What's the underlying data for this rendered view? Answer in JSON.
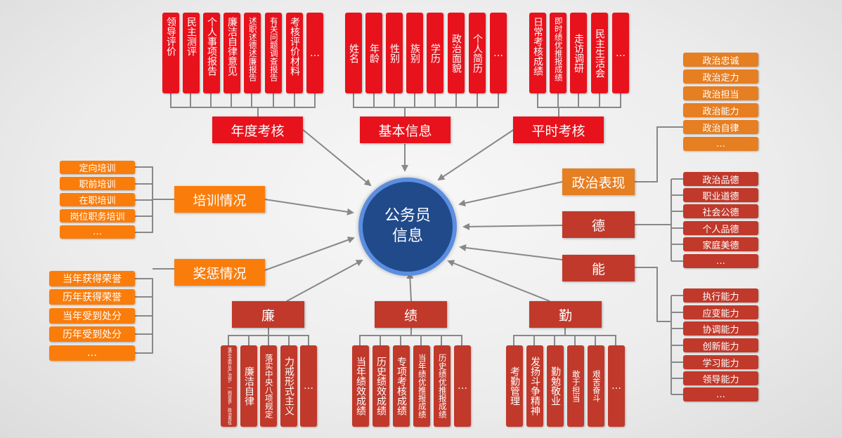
{
  "center": {
    "line1": "公务员",
    "line2": "信息"
  },
  "categories": {
    "annual": "年度考核",
    "basic": "基本信息",
    "routine": "平时考核",
    "training": "培训情况",
    "reward": "奖惩情况",
    "political": "政治表现",
    "de": "德",
    "neng": "能",
    "lian": "廉",
    "ji": "绩",
    "qin": "勤"
  },
  "annual_items": [
    "领导评价",
    "民主测评",
    "个人事项报告",
    "廉洁自律意见",
    "述职述德述廉报告",
    "有关问题调查报告",
    "考核评价材料",
    "…"
  ],
  "basic_items": [
    "姓名",
    "年龄",
    "性别",
    "族别",
    "学历",
    "政治面貌",
    "个人简历",
    "…"
  ],
  "routine_items": [
    "日常考核成绩",
    "即时绩优推报成绩",
    "走访调研",
    "民主生活会",
    "…"
  ],
  "training_items": [
    "定向培训",
    "职前培训",
    "在职培训",
    "岗位职务培训",
    "…"
  ],
  "reward_items": [
    "当年获得荣誉",
    "历年获得荣誉",
    "当年受到处分",
    "历年受到处分",
    "…"
  ],
  "political_items": [
    "政治忠诚",
    "政治定力",
    "政治担当",
    "政治能力",
    "政治自律",
    "…"
  ],
  "de_items": [
    "政治品德",
    "职业道德",
    "社会公德",
    "个人品德",
    "家庭美德",
    "…"
  ],
  "neng_items": [
    "执行能力",
    "应变能力",
    "协调能力",
    "创新能力",
    "学习能力",
    "领导能力",
    "…"
  ],
  "lian_items": [
    "落实全面从严治党“一岗双责”政治责任",
    "廉洁自律",
    "落实中央八项规定",
    "力戒形式主义",
    "…"
  ],
  "ji_items": [
    "当年绩效成绩",
    "历史绩效成绩",
    "专项考核成绩",
    "当年绩优推报成绩",
    "历史绩优推报成绩",
    "…"
  ],
  "qin_items": [
    "考勤管理",
    "发扬斗争精神",
    "勤勉敬业",
    "敢于担当",
    "艰苦奋斗",
    "…"
  ],
  "colors": {
    "red": "#e8121c",
    "orange": "#fa7d0c",
    "dark_red": "#c0392b",
    "center_blue": "#214a8b",
    "ring_blue": "#5b8ee0",
    "line_gray": "#888888"
  }
}
